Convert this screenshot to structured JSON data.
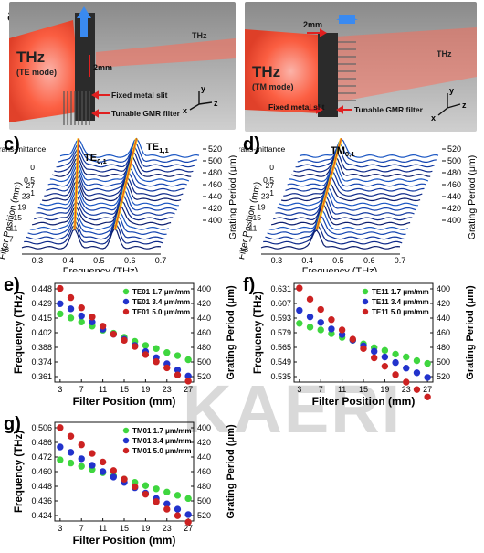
{
  "panels": {
    "a": {
      "label": "a)",
      "thz": "THz",
      "mode": "(TE mode)",
      "thz_out": "THz",
      "gap": "2mm",
      "fixed": "Fixed metal slit",
      "tunable": "Tunable GMR filter",
      "axes": {
        "x": "x",
        "y": "y",
        "z": "z"
      }
    },
    "b": {
      "label": "b)",
      "thz": "THz",
      "mode": "(TM mode)",
      "thz_out": "THz",
      "gap": "2mm",
      "fixed": "Fixed metal slit",
      "tunable": "Tunable GMR filter",
      "axes": {
        "x": "x",
        "y": "y",
        "z": "z"
      }
    },
    "c": {
      "label": "c)",
      "zlabel": "Trans-mittance",
      "ylabel": "Filter Position (mm)",
      "xlabel": "Frequency (THz)",
      "rlabel": "Grating Period (μm)",
      "peak1": "TE0,1",
      "peak2": "TE1,1"
    },
    "d": {
      "label": "d)",
      "zlabel": "Trans-mittance",
      "ylabel": "Filter Position (mm)",
      "xlabel": "Frequency (THz)",
      "rlabel": "Grating Period (μm)",
      "peak1": "TM0,1"
    },
    "e": {
      "label": "e)"
    },
    "f": {
      "label": "f)"
    },
    "g": {
      "label": "g)"
    }
  },
  "watermark": "KAERI",
  "chart_data": [
    {
      "type": "waterfall",
      "panel": "c",
      "title": "",
      "xlabel": "Frequency (THz)",
      "xticks": [
        0.3,
        0.4,
        0.5,
        0.6,
        0.7
      ],
      "zticks": [
        0,
        0.5,
        1
      ],
      "filter_position_ticks": [
        3,
        7,
        11,
        15,
        19,
        23,
        27
      ],
      "grating_period_ticks": [
        400,
        420,
        440,
        460,
        480,
        500,
        520
      ],
      "peaks": [
        "TE0,1",
        "TE1,1"
      ]
    },
    {
      "type": "waterfall",
      "panel": "d",
      "title": "",
      "xlabel": "Frequency (THz)",
      "xticks": [
        0.3,
        0.4,
        0.5,
        0.6,
        0.7
      ],
      "zticks": [
        0,
        0.5,
        1
      ],
      "filter_position_ticks": [
        3,
        7,
        11,
        15,
        19,
        23,
        27
      ],
      "grating_period_ticks": [
        400,
        420,
        440,
        460,
        480,
        500,
        520
      ],
      "peaks": [
        "TM0,1"
      ]
    },
    {
      "type": "scatter",
      "panel": "e",
      "xlabel": "Filter Position (mm)",
      "ylabel": "Frequency (THz)",
      "y2label": "Grating Period (μm)",
      "x": [
        3,
        5,
        7,
        9,
        11,
        13,
        15,
        17,
        19,
        21,
        23,
        25,
        27
      ],
      "xticks": [
        3,
        7,
        11,
        15,
        19,
        23,
        27
      ],
      "yticks": [
        0.448,
        0.429,
        0.415,
        0.402,
        0.388,
        0.374,
        0.361
      ],
      "y2ticks": [
        400,
        420,
        440,
        460,
        480,
        500,
        520
      ],
      "ylim": [
        0.356,
        0.453
      ],
      "series": [
        {
          "name": "TE01 1.7 μm/mm",
          "color": "#3fd63f",
          "values": [
            0.423,
            0.419,
            0.415,
            0.411,
            0.407,
            0.404,
            0.4,
            0.396,
            0.392,
            0.389,
            0.385,
            0.382,
            0.378
          ]
        },
        {
          "name": "TE01 3.4 μm/mm",
          "color": "#2233cc",
          "values": [
            0.433,
            0.428,
            0.421,
            0.415,
            0.408,
            0.403,
            0.398,
            0.392,
            0.386,
            0.38,
            0.374,
            0.368,
            0.362
          ]
        },
        {
          "name": "TE01 5.0 μm/mm",
          "color": "#cc2222",
          "values": [
            0.448,
            0.439,
            0.429,
            0.42,
            0.411,
            0.403,
            0.397,
            0.391,
            0.383,
            0.376,
            0.37,
            0.363,
            0.357
          ]
        }
      ]
    },
    {
      "type": "scatter",
      "panel": "f",
      "xlabel": "Filter Position (mm)",
      "ylabel": "Frequency (THz)",
      "y2label": "Grating Period (μm)",
      "x": [
        3,
        5,
        7,
        9,
        11,
        13,
        15,
        17,
        19,
        21,
        23,
        25,
        27
      ],
      "xticks": [
        3,
        7,
        11,
        15,
        19,
        23,
        27
      ],
      "yticks": [
        0.631,
        0.607,
        0.593,
        0.579,
        0.565,
        0.549,
        0.535
      ],
      "y2ticks": [
        400,
        420,
        440,
        460,
        480,
        500,
        520
      ],
      "ylim": [
        0.53,
        0.636
      ],
      "series": [
        {
          "name": "TE11 1.7 μm/mm",
          "color": "#3fd63f",
          "values": [
            0.593,
            0.589,
            0.586,
            0.582,
            0.578,
            0.575,
            0.571,
            0.567,
            0.564,
            0.56,
            0.557,
            0.553,
            0.55
          ]
        },
        {
          "name": "TE11 3.4 μm/mm",
          "color": "#2233cc",
          "values": [
            0.607,
            0.6,
            0.594,
            0.587,
            0.581,
            0.575,
            0.569,
            0.563,
            0.557,
            0.551,
            0.545,
            0.54,
            0.535
          ]
        },
        {
          "name": "TE11 5.0 μm/mm",
          "color": "#cc2222",
          "values": [
            0.631,
            0.619,
            0.608,
            0.597,
            0.586,
            0.576,
            0.566,
            0.556,
            0.547,
            0.538,
            0.53,
            0.522,
            0.514
          ]
        }
      ]
    },
    {
      "type": "scatter",
      "panel": "g",
      "xlabel": "Filter Position (mm)",
      "ylabel": "Frequency (THz)",
      "y2label": "Grating Period (μm)",
      "x": [
        3,
        5,
        7,
        9,
        11,
        13,
        15,
        17,
        19,
        21,
        23,
        25,
        27
      ],
      "xticks": [
        3,
        7,
        11,
        15,
        19,
        23,
        27
      ],
      "yticks": [
        0.506,
        0.486,
        0.472,
        0.46,
        0.448,
        0.436,
        0.424
      ],
      "y2ticks": [
        400,
        420,
        440,
        460,
        480,
        500,
        520
      ],
      "ylim": [
        0.419,
        0.511
      ],
      "series": [
        {
          "name": "TM01 1.7 μm/mm",
          "color": "#3fd63f",
          "values": [
            0.476,
            0.473,
            0.47,
            0.467,
            0.464,
            0.461,
            0.458,
            0.455,
            0.452,
            0.449,
            0.446,
            0.443,
            0.44
          ]
        },
        {
          "name": "TM01 3.4 μm/mm",
          "color": "#2233cc",
          "values": [
            0.488,
            0.483,
            0.477,
            0.471,
            0.465,
            0.46,
            0.455,
            0.45,
            0.445,
            0.44,
            0.435,
            0.43,
            0.425
          ]
        },
        {
          "name": "TM01 5.0 μm/mm",
          "color": "#cc2222",
          "values": [
            0.506,
            0.498,
            0.49,
            0.482,
            0.474,
            0.466,
            0.458,
            0.451,
            0.444,
            0.437,
            0.43,
            0.424,
            0.418
          ]
        }
      ]
    }
  ]
}
